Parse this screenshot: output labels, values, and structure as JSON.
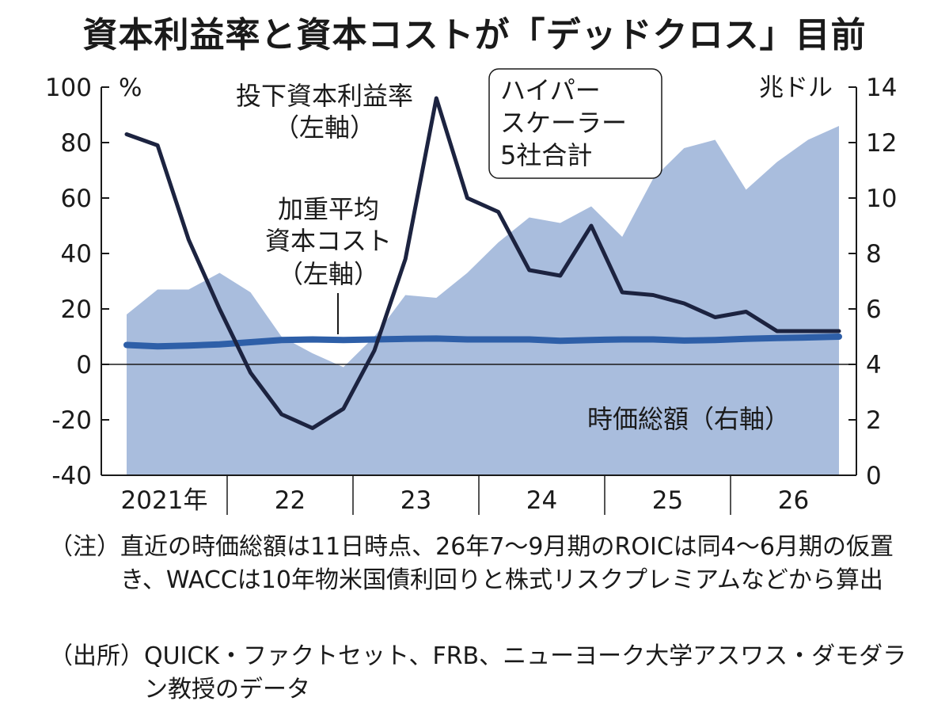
{
  "title": "資本利益率と資本コストが「デッドクロス」目前",
  "chart_data": {
    "type": "line+area",
    "left_axis": {
      "unit": "%",
      "ticks": [
        "100",
        "80",
        "60",
        "40",
        "20",
        "0",
        "-20",
        "-40"
      ],
      "range": [
        -40,
        100
      ]
    },
    "right_axis": {
      "unit": "兆ドル",
      "ticks": [
        "14",
        "12",
        "10",
        "8",
        "6",
        "4",
        "2",
        "0"
      ],
      "range": [
        0,
        14
      ]
    },
    "x_axis": {
      "ticks": [
        "2021年",
        "22",
        "23",
        "24",
        "25",
        "26"
      ]
    },
    "box_label": [
      "ハイパー",
      "スケーラー",
      "5社合計"
    ],
    "series": [
      {
        "name": "投下資本利益率",
        "name_sub": "（左軸）",
        "axis": "left",
        "color": "#1c2340",
        "x": [
          0,
          1,
          2,
          3,
          4,
          5,
          6,
          7,
          8,
          9,
          10,
          11,
          12,
          13,
          14,
          15,
          16,
          17,
          18,
          19,
          20,
          21,
          22,
          23
        ],
        "values": [
          83,
          79,
          45,
          20,
          -3,
          -18,
          -23,
          -16,
          5,
          38,
          96,
          60,
          55,
          34,
          32,
          50,
          26,
          25,
          22,
          17,
          19,
          12,
          12,
          12
        ]
      },
      {
        "name": "加重平均資本コスト",
        "name_lines": [
          "加重平均",
          "資本コスト"
        ],
        "name_sub": "（左軸）",
        "axis": "left",
        "color": "#2e5fa8",
        "x": [
          0,
          1,
          2,
          3,
          4,
          5,
          6,
          7,
          8,
          9,
          10,
          11,
          12,
          13,
          14,
          15,
          16,
          17,
          18,
          19,
          20,
          21,
          22,
          23
        ],
        "values": [
          7,
          6.5,
          6.8,
          7.2,
          8,
          8.8,
          9,
          8.8,
          9,
          9.2,
          9.3,
          9,
          9,
          9,
          8.5,
          8.8,
          9,
          9,
          8.6,
          8.8,
          9.2,
          9.5,
          9.7,
          10
        ]
      },
      {
        "name": "時価総額（右軸）",
        "axis": "right",
        "color": "#a9bddd",
        "x": [
          0,
          1,
          2,
          3,
          4,
          5,
          6,
          7,
          8,
          9,
          10,
          11,
          12,
          13,
          14,
          15,
          16,
          17,
          18,
          19,
          20,
          21,
          22,
          23
        ],
        "values": [
          5.8,
          6.7,
          6.7,
          7.3,
          6.6,
          5.0,
          4.4,
          3.9,
          5.0,
          6.5,
          6.4,
          7.3,
          8.4,
          9.3,
          9.1,
          9.7,
          8.6,
          10.7,
          11.8,
          12.1,
          10.3,
          11.3,
          12.1,
          12.6
        ]
      }
    ]
  },
  "notes": {
    "note1_label": "（注）",
    "note1_text": "直近の時価総額は11日時点、26年7～9月期のROICは同4～6月期の仮置き、WACCは10年物米国債利回りと株式リスクプレミアムなどから算出",
    "note2_label": "（出所）",
    "note2_text": "QUICK・ファクトセット、FRB、ニューヨーク大学アスワス・ダモダラン教授のデータ"
  }
}
